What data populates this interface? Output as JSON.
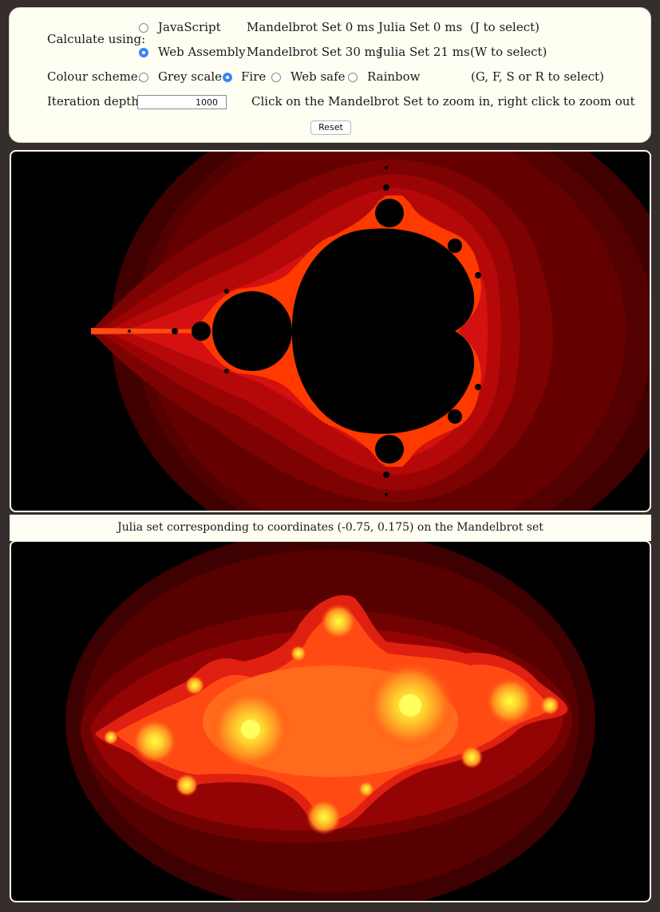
{
  "controls": {
    "calculate_label": "Calculate using:",
    "engines": [
      {
        "label": "JavaScript",
        "selected": false,
        "mandelbrot_time": "Mandelbrot Set 0 ms",
        "julia_time": "Julia Set 0 ms",
        "shortcut": "(J to select)"
      },
      {
        "label": "Web Assembly",
        "selected": true,
        "mandelbrot_time": "Mandelbrot Set 30 ms",
        "julia_time": "Julia Set 21 ms",
        "shortcut": "(W to select)"
      }
    ],
    "colour_label": "Colour scheme:",
    "schemes": [
      {
        "label": "Grey scale",
        "selected": false
      },
      {
        "label": "Fire",
        "selected": true
      },
      {
        "label": "Web safe",
        "selected": false
      },
      {
        "label": "Rainbow",
        "selected": false
      }
    ],
    "scheme_shortcut": "(G, F, S or R to select)",
    "iteration_label": "Iteration depth:",
    "iteration_value": "1000",
    "zoom_hint": "Click on the Mandelbrot Set to zoom in, right click to zoom out",
    "reset_label": "Reset"
  },
  "julia_caption": "Julia set corresponding to coordinates (-0.75, 0.175) on the Mandelbrot set",
  "colors": {
    "selected_radio": "#3b86f6",
    "panel_background": "#fefef2",
    "page_background": "#352e2c"
  }
}
